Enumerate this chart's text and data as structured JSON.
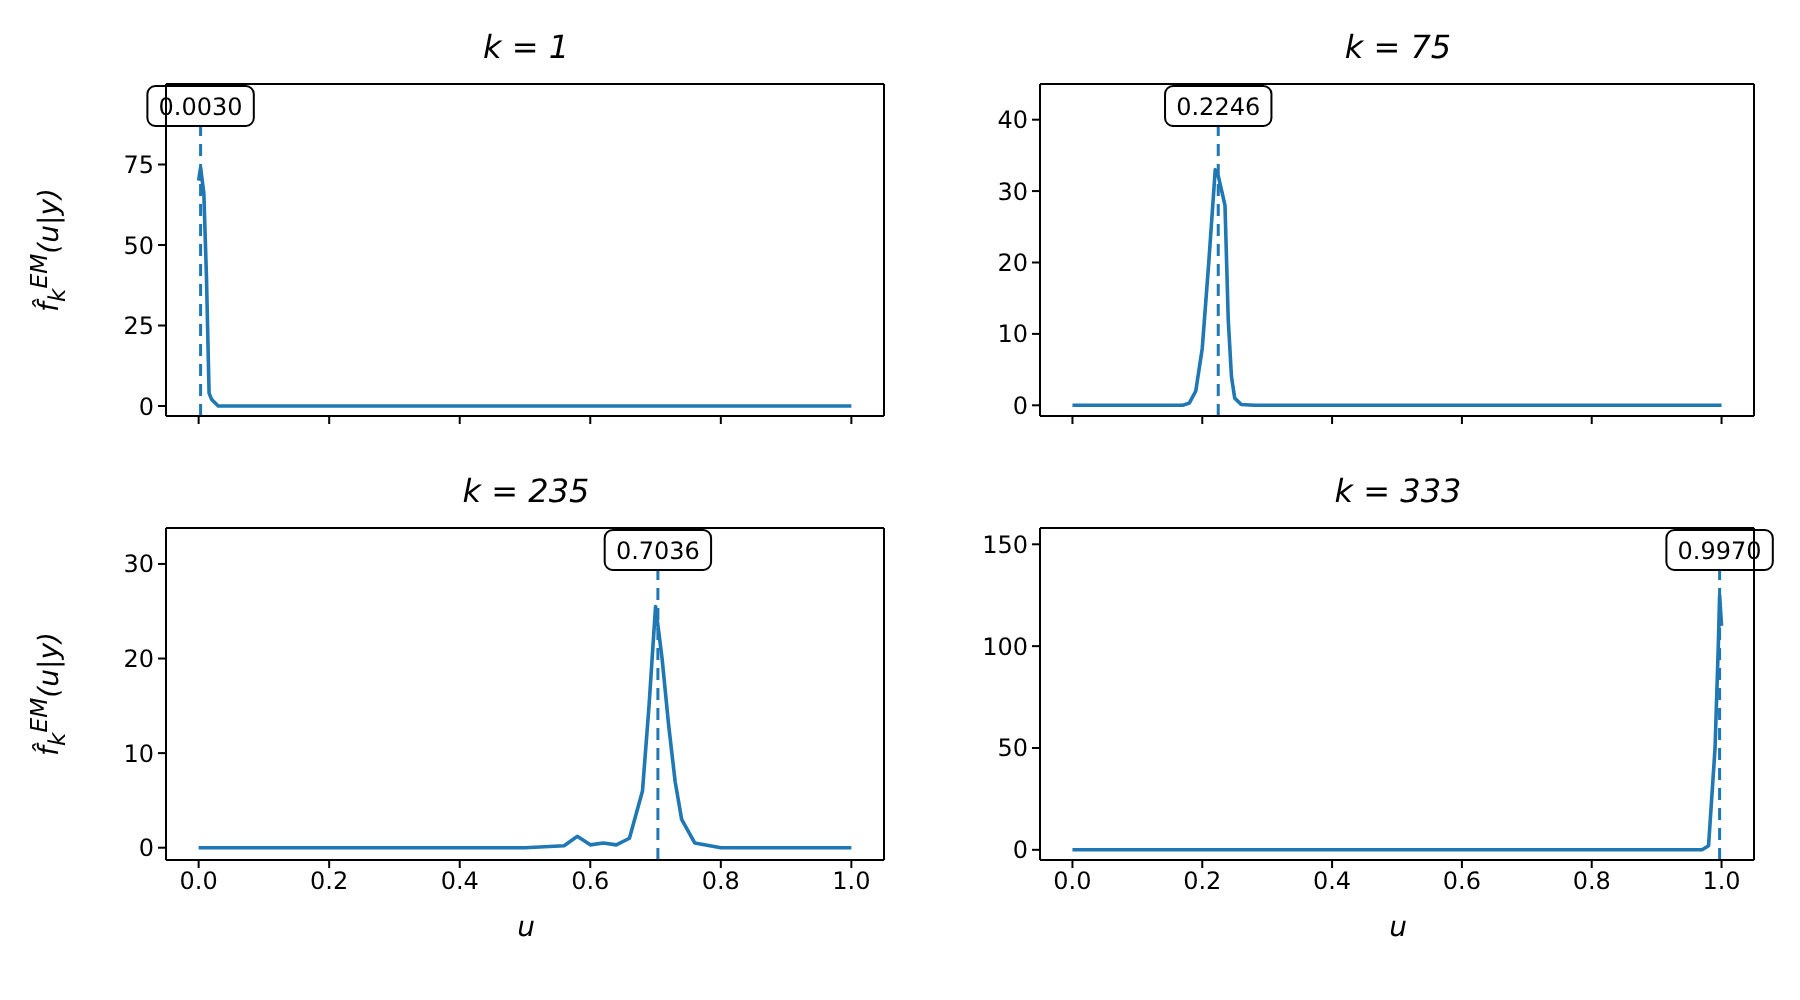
{
  "chart_data": [
    {
      "type": "line",
      "title": "k = 1",
      "ylabel": "f̂$_{k}$$^{EM}$(u|y)",
      "x": [
        0,
        0.003,
        0.008,
        0.012,
        0.016,
        0.02,
        0.03,
        1
      ],
      "series": [
        {
          "color": "#1f77b4",
          "values": [
            70,
            74,
            66,
            40,
            4,
            2,
            0,
            0
          ]
        }
      ],
      "xlim": [
        -0.05,
        1.05
      ],
      "xticks": [
        {
          "value": 0,
          "label": null
        },
        {
          "value": 0.2,
          "label": null
        },
        {
          "value": 0.4,
          "label": null
        },
        {
          "value": 0.6,
          "label": null
        },
        {
          "value": 0.8,
          "label": null
        },
        {
          "value": 1,
          "label": null
        }
      ],
      "ylim": [
        -3.1,
        100
      ],
      "yticks": [
        0,
        25,
        50,
        75
      ],
      "tick_labels": "y",
      "grid": false,
      "legend": false,
      "marker": "none",
      "line_style": "solid",
      "ref_lines": [
        {
          "axis": "x",
          "value": 0.003,
          "label": "0.0030",
          "color": "#1f77b4",
          "line_style": "dashed"
        }
      ]
    },
    {
      "type": "line",
      "title": "k = 75",
      "x": [
        0,
        0.17,
        0.18,
        0.19,
        0.2,
        0.21,
        0.22,
        0.225,
        0.23,
        0.235,
        0.24,
        0.245,
        0.25,
        0.26,
        0.28,
        1
      ],
      "series": [
        {
          "color": "#1f77b4",
          "values": [
            0,
            0,
            0.3,
            2,
            8,
            20,
            33,
            32,
            30,
            28,
            12,
            4,
            1,
            0.1,
            0,
            0
          ]
        }
      ],
      "xlim": [
        -0.05,
        1.05
      ],
      "xticks": [
        {
          "value": 0,
          "label": null
        },
        {
          "value": 0.2,
          "label": null
        },
        {
          "value": 0.4,
          "label": null
        },
        {
          "value": 0.6,
          "label": null
        },
        {
          "value": 0.8,
          "label": null
        },
        {
          "value": 1,
          "label": null
        }
      ],
      "ylim": [
        -1.5,
        45
      ],
      "yticks": [
        0,
        10,
        20,
        30,
        40
      ],
      "tick_labels": "y",
      "grid": false,
      "legend": false,
      "marker": "none",
      "line_style": "solid",
      "ref_lines": [
        {
          "axis": "x",
          "value": 0.2246,
          "label": "0.2246",
          "color": "#1f77b4",
          "line_style": "dashed"
        }
      ]
    },
    {
      "type": "line",
      "title": "k = 235",
      "xlabel": "u",
      "ylabel": "f̂$_{k}$$^{EM}$(u|y)",
      "x": [
        0,
        0.5,
        0.56,
        0.58,
        0.6,
        0.62,
        0.64,
        0.66,
        0.68,
        0.69,
        0.7,
        0.71,
        0.72,
        0.73,
        0.74,
        0.76,
        0.8,
        1
      ],
      "series": [
        {
          "color": "#1f77b4",
          "values": [
            0,
            0,
            0.2,
            1.2,
            0.3,
            0.5,
            0.3,
            1,
            6,
            15,
            25.5,
            20,
            13,
            7,
            3,
            0.5,
            0,
            0
          ]
        }
      ],
      "xlim": [
        -0.05,
        1.05
      ],
      "xticks": [
        {
          "value": 0,
          "label": "0.0"
        },
        {
          "value": 0.2,
          "label": "0.2"
        },
        {
          "value": 0.4,
          "label": "0.4"
        },
        {
          "value": 0.6,
          "label": "0.6"
        },
        {
          "value": 0.8,
          "label": "0.8"
        },
        {
          "value": 1,
          "label": "1.0"
        }
      ],
      "ylim": [
        -1.3,
        33.8
      ],
      "yticks": [
        0,
        10,
        20,
        30
      ],
      "grid": false,
      "legend": false,
      "marker": "none",
      "line_style": "solid",
      "ref_lines": [
        {
          "axis": "x",
          "value": 0.7036,
          "label": "0.7036",
          "color": "#1f77b4",
          "line_style": "dashed"
        }
      ]
    },
    {
      "type": "line",
      "title": "k = 333",
      "xlabel": "u",
      "x": [
        0,
        0.97,
        0.98,
        0.99,
        0.995,
        0.997,
        1
      ],
      "series": [
        {
          "color": "#1f77b4",
          "values": [
            0,
            0,
            2,
            50,
            100,
            125,
            110
          ]
        }
      ],
      "xlim": [
        -0.05,
        1.05
      ],
      "xticks": [
        {
          "value": 0,
          "label": "0.0"
        },
        {
          "value": 0.2,
          "label": "0.2"
        },
        {
          "value": 0.4,
          "label": "0.4"
        },
        {
          "value": 0.6,
          "label": "0.6"
        },
        {
          "value": 0.8,
          "label": "0.8"
        },
        {
          "value": 1,
          "label": "1.0"
        }
      ],
      "ylim": [
        -5,
        158
      ],
      "yticks": [
        0,
        50,
        100,
        150
      ],
      "grid": false,
      "legend": false,
      "marker": "none",
      "line_style": "solid",
      "ref_lines": [
        {
          "axis": "x",
          "value": 0.997,
          "label": "0.9970",
          "color": "#1f77b4",
          "line_style": "dashed"
        }
      ]
    }
  ]
}
